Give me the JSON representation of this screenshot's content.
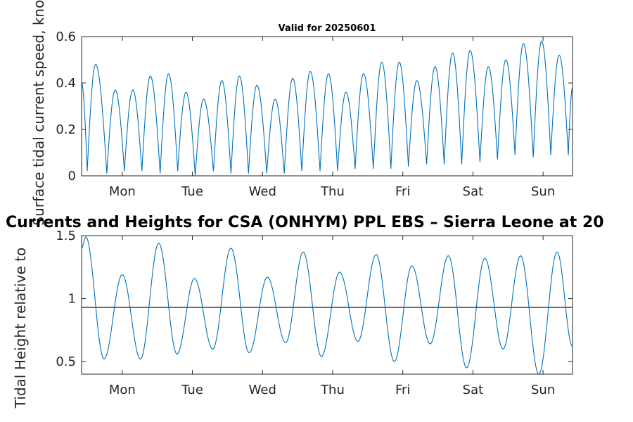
{
  "chart_data": [
    {
      "type": "line",
      "title": "Valid for 20250601",
      "ylabel": "Surface tidal current speed, knots",
      "xlabel": "",
      "xlim": [
        0,
        7
      ],
      "ylim": [
        0,
        0.6
      ],
      "yticks": [
        0,
        0.2,
        0.4,
        0.6
      ],
      "yticklabels": [
        "0",
        "0.2",
        "0.4",
        "0.6"
      ],
      "xticks": [
        0.58,
        1.58,
        2.58,
        3.58,
        4.58,
        5.58,
        6.58
      ],
      "xticklabels": [
        "Mon",
        "Tue",
        "Wed",
        "Thu",
        "Fri",
        "Sat",
        "Sun"
      ],
      "grid": false,
      "color": "#0072BD",
      "series": [
        {
          "x": [
            0,
            0.08,
            0.2,
            0.36,
            0.48,
            0.61,
            0.73,
            0.86,
            0.98,
            1.12,
            1.24,
            1.37,
            1.49,
            1.62,
            1.74,
            1.88,
            2.0,
            2.13,
            2.25,
            2.38,
            2.5,
            2.64,
            2.76,
            2.89,
            3.01,
            3.14,
            3.26,
            3.4,
            3.52,
            3.65,
            3.77,
            3.9,
            4.02,
            4.16,
            4.28,
            4.41,
            4.53,
            4.66,
            4.78,
            4.92,
            5.04,
            5.17,
            5.29,
            5.42,
            5.54,
            5.68,
            5.8,
            5.93,
            6.05,
            6.18,
            6.3,
            6.44,
            6.56,
            6.69,
            6.81,
            6.94,
            7.0
          ],
          "y": [
            0.4,
            0.02,
            0.48,
            0.01,
            0.37,
            0.02,
            0.37,
            0.02,
            0.43,
            0.01,
            0.44,
            0.02,
            0.36,
            0.0,
            0.33,
            0.02,
            0.41,
            0.01,
            0.43,
            0.01,
            0.39,
            0.01,
            0.33,
            0.01,
            0.42,
            0.02,
            0.45,
            0.02,
            0.44,
            0.02,
            0.36,
            0.03,
            0.44,
            0.03,
            0.49,
            0.03,
            0.49,
            0.04,
            0.41,
            0.05,
            0.47,
            0.05,
            0.53,
            0.05,
            0.54,
            0.06,
            0.47,
            0.07,
            0.5,
            0.09,
            0.57,
            0.08,
            0.58,
            0.09,
            0.52,
            0.09,
            0.38
          ]
        }
      ]
    },
    {
      "type": "line",
      "title": "Currents and Heights for CSA (ONHYM) PPL EBS  – Sierra Leone at 20",
      "ylabel": "Tidal Height relative to",
      "xlabel": "",
      "xlim": [
        0,
        7
      ],
      "ylim": [
        0.4,
        1.5
      ],
      "yticks": [
        0.5,
        1,
        1.5
      ],
      "yticklabels": [
        "0.5",
        "1",
        "1.5"
      ],
      "xticks": [
        0.58,
        1.58,
        2.58,
        3.58,
        4.58,
        5.58,
        6.58
      ],
      "xticklabels": [
        "Mon",
        "Tue",
        "Wed",
        "Thu",
        "Fri",
        "Sat",
        "Sun"
      ],
      "reference_line": 0.93,
      "grid": false,
      "color": "#0072BD",
      "series": [
        {
          "x": [
            0,
            0.06,
            0.32,
            0.58,
            0.84,
            1.1,
            1.36,
            1.61,
            1.87,
            2.13,
            2.39,
            2.65,
            2.91,
            3.16,
            3.42,
            3.68,
            3.94,
            4.2,
            4.46,
            4.71,
            4.97,
            5.23,
            5.49,
            5.75,
            6.01,
            6.26,
            6.52,
            6.78,
            7.0
          ],
          "y": [
            1.4,
            1.49,
            0.52,
            1.19,
            0.52,
            1.44,
            0.56,
            1.16,
            0.6,
            1.4,
            0.57,
            1.17,
            0.65,
            1.37,
            0.54,
            1.21,
            0.66,
            1.35,
            0.5,
            1.26,
            0.64,
            1.34,
            0.45,
            1.32,
            0.6,
            1.34,
            0.4,
            1.37,
            0.62
          ]
        }
      ]
    }
  ]
}
